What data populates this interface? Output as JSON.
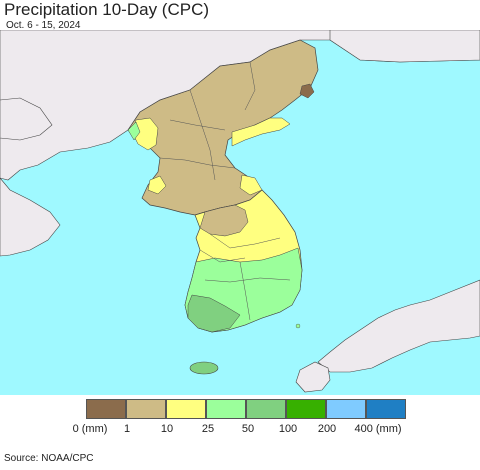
{
  "title": "Precipitation 10-Day (CPC)",
  "subtitle": "Oct. 6 - 15, 2024",
  "source": "Source: NOAA/CPC",
  "map": {
    "ocean_color": "#9ff9ff",
    "foreign_land_color": "#eeeaee",
    "border_color": "#444444"
  },
  "legend": {
    "colors": [
      "#8b6c4c",
      "#cebb86",
      "#ffff80",
      "#9bff9b",
      "#80d080",
      "#37b000",
      "#7fcbff",
      "#1f7fc4"
    ],
    "tick_labels": [
      "0 (mm)",
      "1",
      "10",
      "25",
      "50",
      "100",
      "200",
      "400 (mm)"
    ]
  }
}
